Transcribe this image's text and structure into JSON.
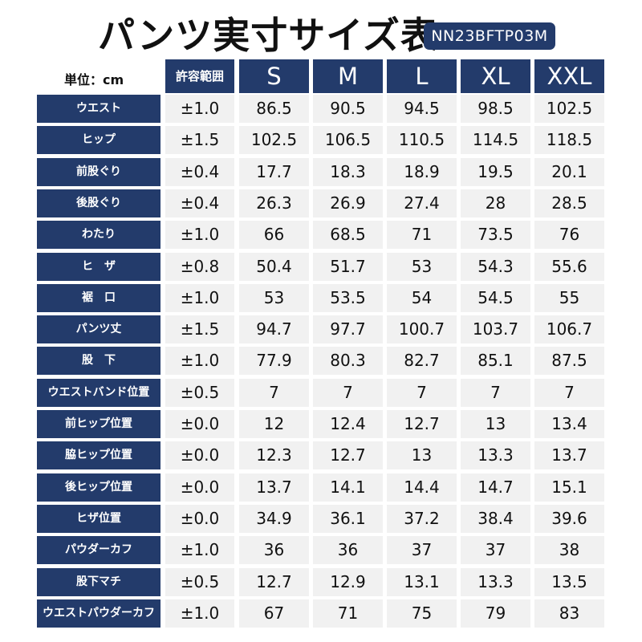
{
  "title": "パンツ実寸サイズ表",
  "product_code": "NN23BFTP03M",
  "unit_label": "単位：cm",
  "tolerance_header": "許容範囲",
  "sizes": [
    "S",
    "M",
    "L",
    "XL",
    "XXL"
  ],
  "colors": {
    "header_bg": "#233b6b",
    "cell_bg": "#f1f1f1"
  },
  "rows": [
    {
      "label": "ウエスト",
      "tolerance": "±1.0",
      "values": [
        "86.5",
        "90.5",
        "94.5",
        "98.5",
        "102.5"
      ]
    },
    {
      "label": "ヒップ",
      "tolerance": "±1.5",
      "values": [
        "102.5",
        "106.5",
        "110.5",
        "114.5",
        "118.5"
      ]
    },
    {
      "label": "前股ぐり",
      "tolerance": "±0.4",
      "values": [
        "17.7",
        "18.3",
        "18.9",
        "19.5",
        "20.1"
      ]
    },
    {
      "label": "後股ぐり",
      "tolerance": "±0.4",
      "values": [
        "26.3",
        "26.9",
        "27.4",
        "28",
        "28.5"
      ]
    },
    {
      "label": "わたり",
      "tolerance": "±1.0",
      "values": [
        "66",
        "68.5",
        "71",
        "73.5",
        "76"
      ]
    },
    {
      "label": "ヒ　ザ",
      "tolerance": "±0.8",
      "values": [
        "50.4",
        "51.7",
        "53",
        "54.3",
        "55.6"
      ]
    },
    {
      "label": "裾　口",
      "tolerance": "±1.0",
      "values": [
        "53",
        "53.5",
        "54",
        "54.5",
        "55"
      ]
    },
    {
      "label": "パンツ丈",
      "tolerance": "±1.5",
      "values": [
        "94.7",
        "97.7",
        "100.7",
        "103.7",
        "106.7"
      ]
    },
    {
      "label": "股　下",
      "tolerance": "±1.0",
      "values": [
        "77.9",
        "80.3",
        "82.7",
        "85.1",
        "87.5"
      ]
    },
    {
      "label": "ウエストバンド位置",
      "tolerance": "±0.5",
      "values": [
        "7",
        "7",
        "7",
        "7",
        "7"
      ]
    },
    {
      "label": "前ヒップ位置",
      "tolerance": "±0.0",
      "values": [
        "12",
        "12.4",
        "12.7",
        "13",
        "13.4"
      ]
    },
    {
      "label": "脇ヒップ位置",
      "tolerance": "±0.0",
      "values": [
        "12.3",
        "12.7",
        "13",
        "13.3",
        "13.7"
      ]
    },
    {
      "label": "後ヒップ位置",
      "tolerance": "±0.0",
      "values": [
        "13.7",
        "14.1",
        "14.4",
        "14.7",
        "15.1"
      ]
    },
    {
      "label": "ヒザ位置",
      "tolerance": "±0.0",
      "values": [
        "34.9",
        "36.1",
        "37.2",
        "38.4",
        "39.6"
      ]
    },
    {
      "label": "パウダーカフ",
      "tolerance": "±1.0",
      "values": [
        "36",
        "36",
        "37",
        "37",
        "38"
      ]
    },
    {
      "label": "股下マチ",
      "tolerance": "±0.5",
      "values": [
        "12.7",
        "12.9",
        "13.1",
        "13.3",
        "13.5"
      ]
    },
    {
      "label": "ウエストパウダーカフ",
      "tolerance": "±1.0",
      "values": [
        "67",
        "71",
        "75",
        "79",
        "83"
      ]
    }
  ]
}
